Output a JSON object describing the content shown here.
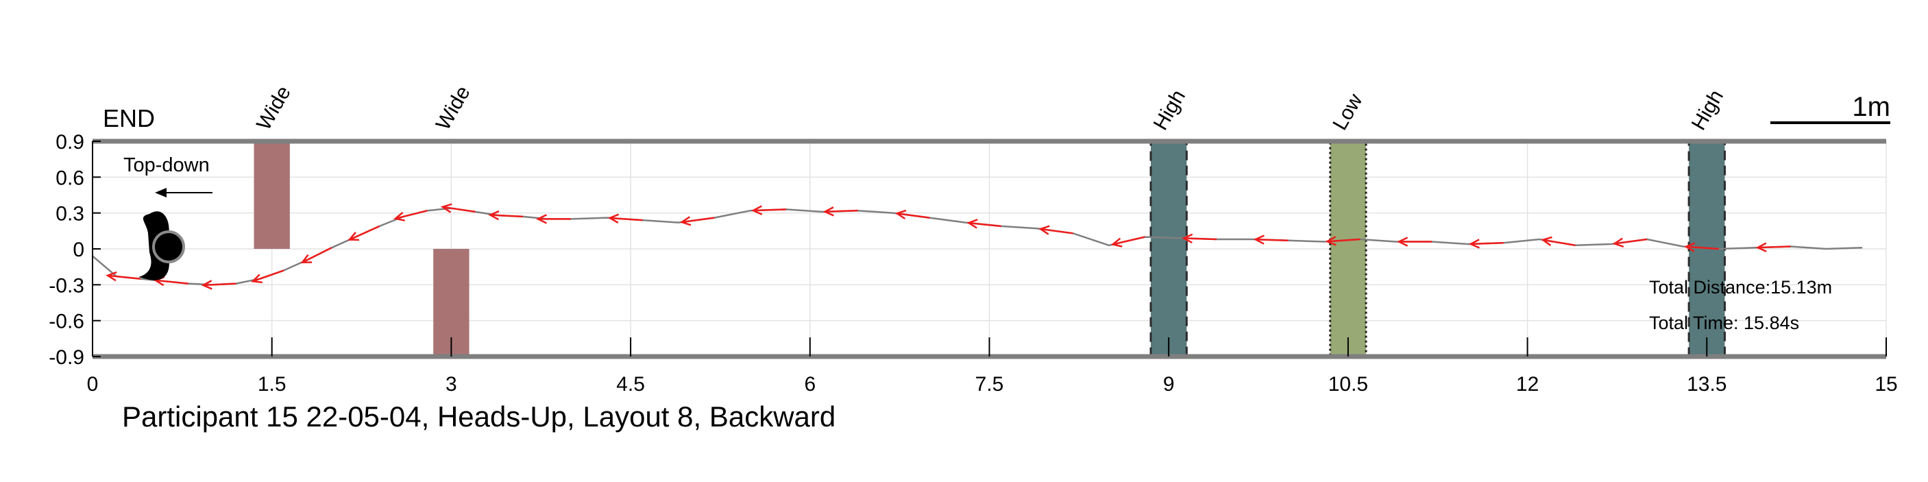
{
  "chart_data": {
    "type": "line",
    "title": "Participant 15 22-05-04, Heads-Up, Layout 8, Backward",
    "xlabel": "",
    "ylabel": "",
    "xlim": [
      0,
      15
    ],
    "ylim": [
      -0.9,
      0.9
    ],
    "x_ticks": [
      0,
      1.5,
      3,
      4.5,
      6,
      7.5,
      9,
      10.5,
      12,
      13.5,
      15
    ],
    "x_tick_labels": [
      "0",
      "1.5",
      "3",
      "4.5",
      "6",
      "7.5",
      "9",
      "10.5",
      "12",
      "13.5",
      "15"
    ],
    "y_ticks": [
      0.9,
      0.6,
      0.3,
      0,
      -0.3,
      -0.6,
      -0.9
    ],
    "y_tick_labels": [
      "0.9",
      "0.6",
      "0.3",
      "0",
      "-0.3",
      "-0.6",
      "-0.9"
    ],
    "grid": true,
    "end_label": "END",
    "scale_bar_label": "1m",
    "inset_label": "Top-down",
    "annotations": {
      "total_distance": "Total Distance:15.13m",
      "total_time": "Total Time: 15.84s"
    },
    "colors": {
      "path": "#7f7f7f",
      "arrow": "#ee1c1c",
      "wide": "#a97374",
      "high": "#587a7c",
      "low": "#98a975"
    },
    "obstacles": [
      {
        "label": "Wide",
        "kind": "wide",
        "x0": 1.35,
        "x1": 1.65,
        "y0": 0,
        "y1": 0.9
      },
      {
        "label": "Wide",
        "kind": "wide",
        "x0": 2.85,
        "x1": 3.15,
        "y0": -0.9,
        "y1": 0
      },
      {
        "label": "High",
        "kind": "high",
        "x0": 8.85,
        "x1": 9.15,
        "y0": -0.9,
        "y1": 0.9
      },
      {
        "label": "Low",
        "kind": "low",
        "x0": 10.35,
        "x1": 10.65,
        "y0": -0.9,
        "y1": 0.9
      },
      {
        "label": "High",
        "kind": "high",
        "x0": 13.35,
        "x1": 13.65,
        "y0": -0.9,
        "y1": 0.9
      }
    ],
    "series": [
      {
        "x": [
          0.0,
          0.2,
          0.4,
          0.6,
          0.8,
          1.0,
          1.2,
          1.4,
          1.6,
          1.8,
          2.0,
          2.2,
          2.4,
          2.6,
          2.8,
          3.0,
          3.2,
          3.4,
          3.6,
          3.8,
          4.0,
          4.3,
          4.6,
          4.9,
          5.2,
          5.5,
          5.8,
          6.1,
          6.4,
          6.7,
          7.0,
          7.3,
          7.6,
          7.9,
          8.2,
          8.5,
          8.8,
          9.1,
          9.4,
          9.7,
          10.0,
          10.3,
          10.6,
          10.9,
          11.2,
          11.5,
          11.8,
          12.1,
          12.4,
          12.7,
          13.0,
          13.3,
          13.6,
          13.9,
          14.2,
          14.5,
          14.8
        ],
        "y": [
          -0.06,
          -0.23,
          -0.25,
          -0.27,
          -0.29,
          -0.3,
          -0.29,
          -0.25,
          -0.18,
          -0.09,
          0.01,
          0.1,
          0.19,
          0.27,
          0.32,
          0.34,
          0.31,
          0.28,
          0.27,
          0.25,
          0.25,
          0.26,
          0.24,
          0.22,
          0.26,
          0.32,
          0.33,
          0.31,
          0.32,
          0.3,
          0.26,
          0.22,
          0.19,
          0.17,
          0.13,
          0.03,
          0.1,
          0.09,
          0.08,
          0.08,
          0.07,
          0.06,
          0.08,
          0.06,
          0.06,
          0.04,
          0.05,
          0.08,
          0.03,
          0.04,
          0.08,
          0.02,
          0.0,
          0.01,
          0.02,
          0.0,
          0.01
        ]
      }
    ]
  }
}
